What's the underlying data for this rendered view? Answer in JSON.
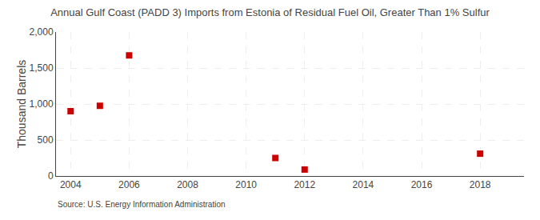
{
  "chart_data": {
    "type": "scatter",
    "title": "Annual Gulf Coast (PADD 3) Imports from Estonia of Residual Fuel Oil, Greater Than 1% Sulfur",
    "ylabel": "Thousand Barrels",
    "source": "Source: U.S. Energy Information Administration",
    "x": [
      2004,
      2005,
      2006,
      2011,
      2012,
      2018
    ],
    "values": [
      900,
      975,
      1675,
      250,
      90,
      310
    ],
    "color": "#cc0000",
    "marker": "square",
    "xlim": [
      2003.5,
      2019.5
    ],
    "ylim": [
      0,
      2000
    ],
    "xticks": [
      2004,
      2006,
      2008,
      2010,
      2012,
      2014,
      2016,
      2018
    ],
    "yticks": [
      0,
      500,
      {
        "value": 1000,
        "label": "1,000"
      },
      {
        "value": 1500,
        "label": "1,500"
      },
      {
        "value": 2000,
        "label": "2,000"
      }
    ],
    "grid": true
  }
}
